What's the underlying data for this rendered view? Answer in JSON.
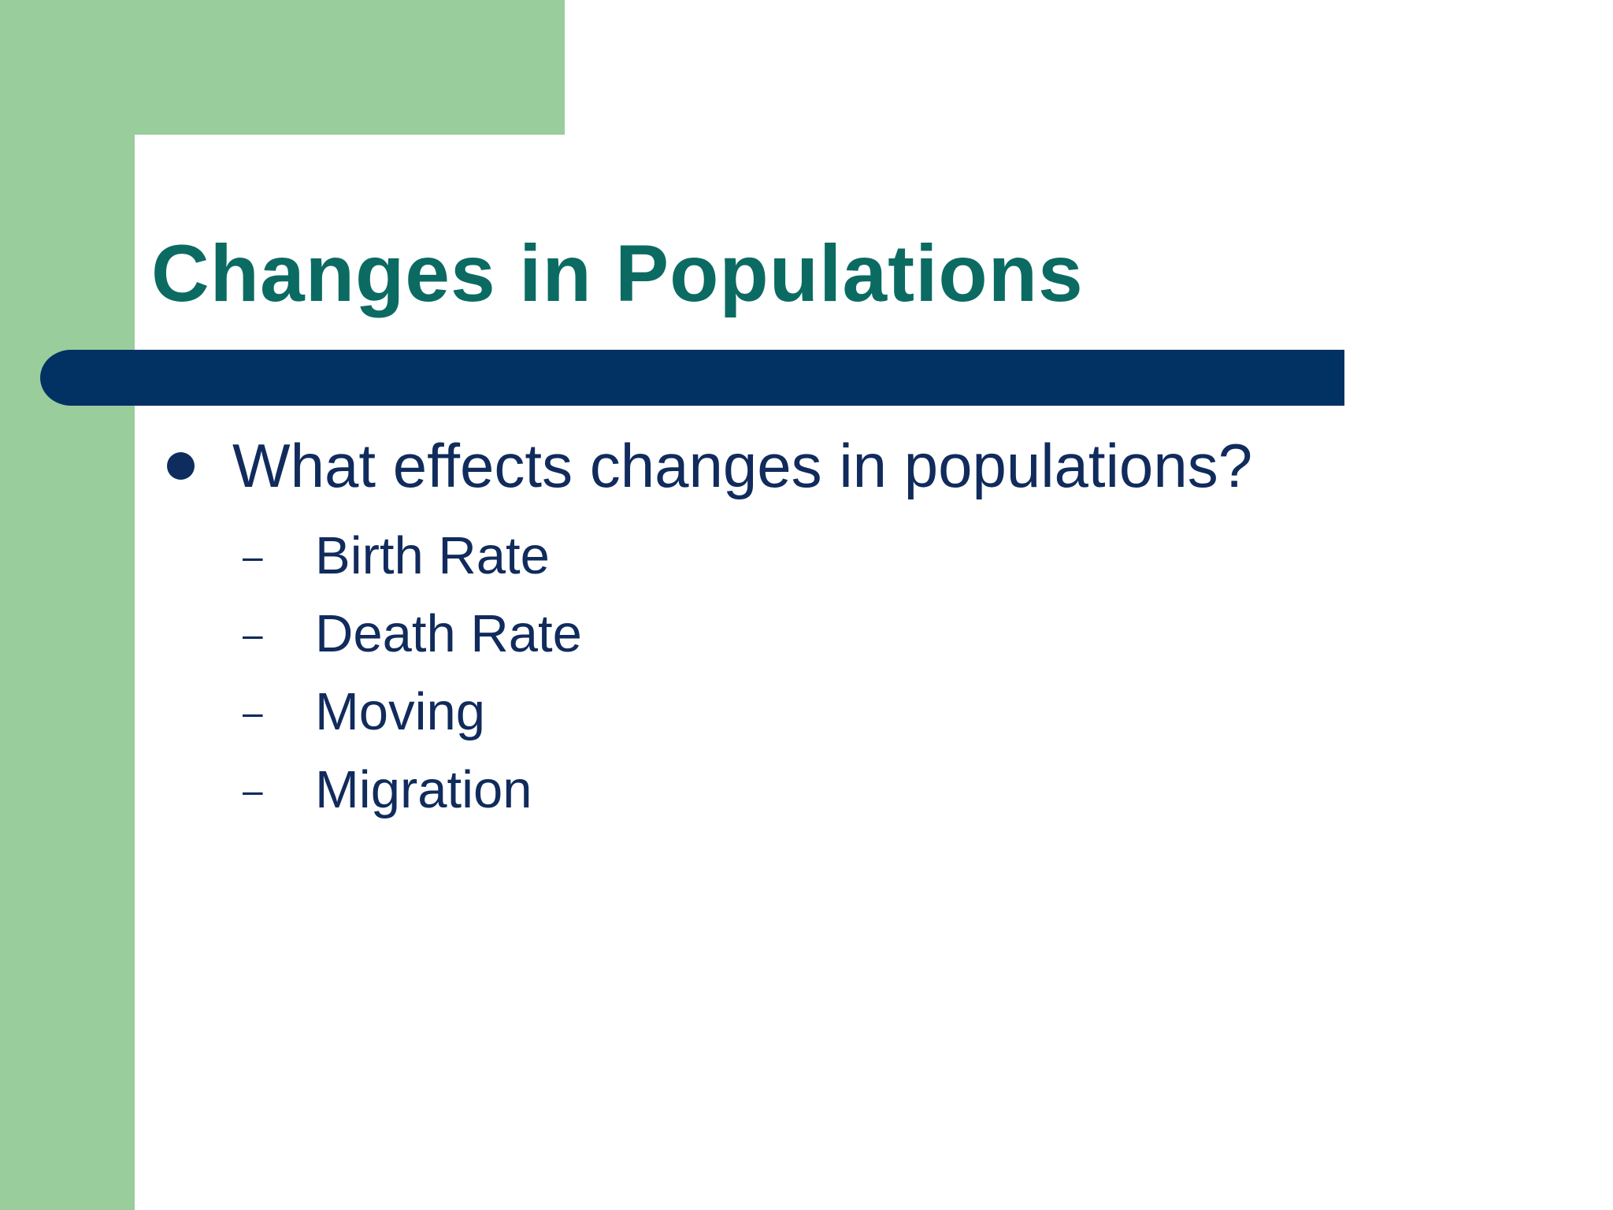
{
  "slide": {
    "title": "Changes in Populations",
    "bullets": [
      {
        "text": "What effects changes in populations?",
        "sub_marker": "–",
        "sub_items": [
          "Birth Rate",
          "Death Rate",
          "Moving",
          "Migration"
        ]
      }
    ]
  },
  "colors": {
    "accent_green": "#9acd9c",
    "title_teal": "#0b6b62",
    "bar_navy": "#023163",
    "text_navy": "#102b5c"
  }
}
